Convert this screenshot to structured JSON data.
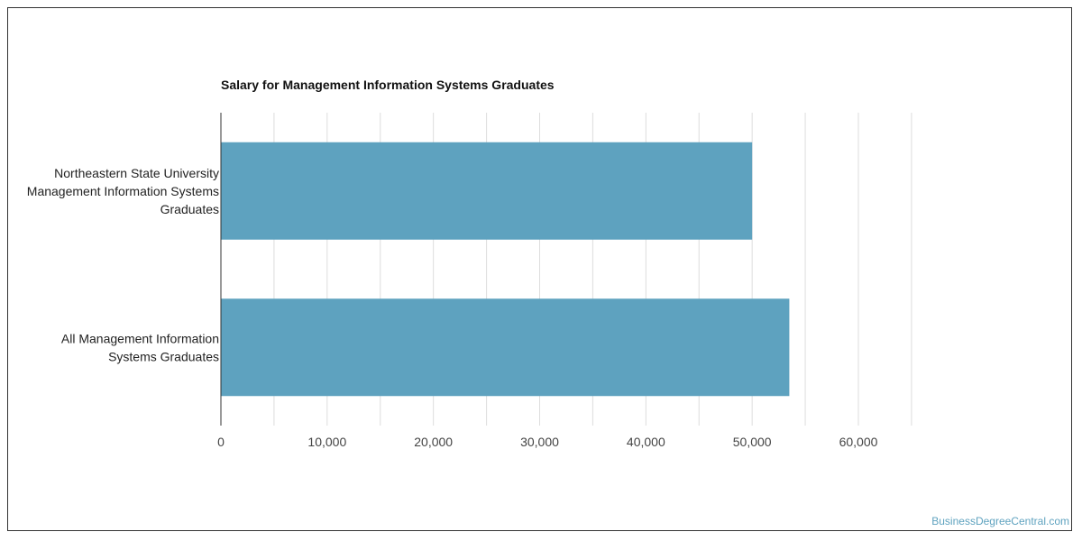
{
  "chart_data": {
    "type": "bar",
    "orientation": "horizontal",
    "title": "Salary for Management Information Systems Graduates",
    "categories": [
      [
        "Northeastern State University",
        "Management Information Systems",
        "Graduates"
      ],
      [
        "All Management Information",
        "Systems Graduates"
      ]
    ],
    "values": [
      50000,
      53500
    ],
    "xlim": [
      0,
      65000
    ],
    "x_ticks": [
      "0",
      "10,000",
      "20,000",
      "30,000",
      "40,000",
      "50,000",
      "60,000"
    ],
    "x_tick_values": [
      0,
      10000,
      20000,
      30000,
      40000,
      50000,
      60000
    ],
    "grid": true,
    "bar_color": "#5ea2bf",
    "grid_color": "#dddddd"
  },
  "credit": "BusinessDegreeCentral.com"
}
